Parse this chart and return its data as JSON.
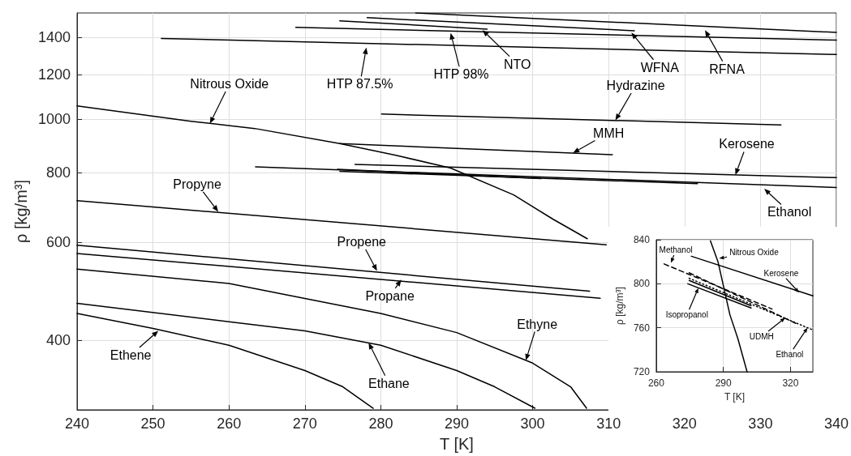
{
  "chart_data": [
    {
      "type": "line",
      "xlabel": "T [K]",
      "ylabel": "ρ [kg/m³]",
      "xlim": [
        240,
        340
      ],
      "xticks": [
        240,
        250,
        260,
        270,
        280,
        290,
        300,
        310,
        320,
        330,
        340
      ],
      "ylim": [
        300,
        1550
      ],
      "yticks": [
        400,
        600,
        800,
        1000,
        1200,
        1400
      ],
      "log": "y",
      "grid": true,
      "marker": "none",
      "line_style": "solid",
      "series": [
        {
          "color": "#000000",
          "x": [
            284.6,
            340
          ],
          "values": [
            1550,
            1430
          ]
        },
        {
          "color": "#000000",
          "x": [
            278.2,
            313.4
          ],
          "values": [
            1520,
            1440
          ]
        },
        {
          "color": "#000000",
          "x": [
            274.6,
            294
          ],
          "values": [
            1500,
            1450
          ]
        },
        {
          "color": "#000000",
          "x": [
            268.8,
            340
          ],
          "values": [
            1460,
            1385
          ]
        },
        {
          "color": "#000000",
          "x": [
            251.1,
            340
          ],
          "values": [
            1395,
            1305
          ]
        },
        {
          "color": "#000000",
          "x": [
            280.1,
            332.7
          ],
          "values": [
            1020,
            975
          ]
        },
        {
          "color": "#000000",
          "x": [
            240,
            255,
            263.4,
            274.6,
            282,
            289.2,
            297.5,
            302.7,
            307.2
          ],
          "values": [
            1055,
            990,
            961,
            903,
            860,
            816,
            730,
            660,
            609
          ]
        },
        {
          "color": "#000000",
          "x": [
            274.6,
            310.5
          ],
          "values": [
            903,
            862
          ]
        },
        {
          "color": "#000000",
          "x": [
            276.6,
            340
          ],
          "values": [
            828,
            784
          ]
        },
        {
          "color": "#000000",
          "x": [
            263.5,
            340
          ],
          "values": [
            820,
            753
          ]
        },
        {
          "color": "#000000",
          "x": [
            274.3,
            301.1
          ],
          "values": [
            812,
            781
          ]
        },
        {
          "color": "#000000",
          "x": [
            274.6,
            321.7
          ],
          "values": [
            805,
            765
          ]
        },
        {
          "color": "#000000",
          "x": [
            240,
            309.7
          ],
          "values": [
            713,
            594
          ]
        },
        {
          "color": "#000000",
          "x": [
            240,
            307.5
          ],
          "values": [
            593,
            490
          ]
        },
        {
          "color": "#000000",
          "x": [
            240,
            308.9
          ],
          "values": [
            573,
            476
          ]
        },
        {
          "color": "#000000",
          "x": [
            240,
            260,
            280,
            290,
            300,
            305,
            307.1
          ],
          "values": [
            537,
            506,
            447,
            413,
            364,
            330,
            302
          ]
        },
        {
          "color": "#000000",
          "x": [
            240,
            260,
            270,
            280,
            290,
            295,
            300.3
          ],
          "values": [
            466,
            432,
            416,
            392,
            353,
            330,
            302
          ]
        },
        {
          "color": "#000000",
          "x": [
            240,
            250,
            260,
            270,
            275,
            279
          ],
          "values": [
            447,
            420,
            392,
            353,
            330,
            302
          ]
        }
      ],
      "annotations": [
        {
          "text": "Nitrous Oxide",
          "x": 257.5,
          "y": 981
        },
        {
          "text": "HTP 87.5%",
          "x": 278.1,
          "y": 1343
        },
        {
          "text": "HTP 98%",
          "x": 289.2,
          "y": 1427
        },
        {
          "text": "NTO",
          "x": 293.4,
          "y": 1444
        },
        {
          "text": "WFNA",
          "x": 313,
          "y": 1429
        },
        {
          "text": "RFNA",
          "x": 322.7,
          "y": 1444
        },
        {
          "text": "Hydrazine",
          "x": 310.9,
          "y": 994
        },
        {
          "text": "MMH",
          "x": 305.3,
          "y": 868
        },
        {
          "text": "Kerosene",
          "x": 326.7,
          "y": 793
        },
        {
          "text": "Ethanol",
          "x": 330.5,
          "y": 749
        },
        {
          "text": "Propyne",
          "x": 258.6,
          "y": 681
        },
        {
          "text": "Propene",
          "x": 279.5,
          "y": 533
        },
        {
          "text": "Propane",
          "x": 282.7,
          "y": 514
        },
        {
          "text": "Ethyne",
          "x": 299.1,
          "y": 368
        },
        {
          "text": "Ethane",
          "x": 278.4,
          "y": 396
        },
        {
          "text": "Ethene",
          "x": 250.7,
          "y": 416
        }
      ]
    },
    {
      "type": "line",
      "xlabel": "T [K]",
      "ylabel": "ρ [kg/m³]",
      "xlim": [
        260,
        330
      ],
      "xticks": [
        260,
        290,
        320
      ],
      "ylim": [
        720,
        840
      ],
      "yticks": [
        720,
        760,
        800,
        840
      ],
      "grid": true,
      "marker": "none",
      "line_style": "solid",
      "series": [
        {
          "color": "#000000",
          "x": [
            284.2,
            287.6,
            292.9,
            296.5,
            300.6
          ],
          "values": [
            839,
            820,
            772,
            750,
            720
          ]
        },
        {
          "color": "#000000",
          "x": [
            275.7,
            330
          ],
          "values": [
            825,
            789
          ]
        },
        {
          "color": "#000000",
          "x": [
            263.5,
            311.8
          ],
          "values": [
            818,
            777
          ],
          "line_style": "dashed"
        },
        {
          "color": "#000000",
          "x": [
            274.7,
            322.4
          ],
          "values": [
            810,
            764
          ],
          "line_style": "dashed"
        },
        {
          "color": "#000000",
          "x": [
            274.7,
            330
          ],
          "values": [
            805,
            758
          ],
          "line_style": "dotted"
        },
        {
          "color": "#000000",
          "x": [
            274.7,
            302.4
          ],
          "values": [
            803,
            780
          ]
        },
        {
          "color": "#000000",
          "x": [
            274.1,
            302.4
          ],
          "values": [
            800,
            778
          ]
        }
      ],
      "annotations": [
        {
          "text": "Methanol",
          "x": 266.6,
          "y": 819
        },
        {
          "text": "Nitrous Oxide",
          "x": 288.1,
          "y": 823
        },
        {
          "text": "Kerosene",
          "x": 323.8,
          "y": 792
        },
        {
          "text": "Isopropanol",
          "x": 278.8,
          "y": 796
        },
        {
          "text": "UDMH",
          "x": 317.6,
          "y": 769
        },
        {
          "text": "Ethanol",
          "x": 327.6,
          "y": 760
        }
      ]
    }
  ]
}
